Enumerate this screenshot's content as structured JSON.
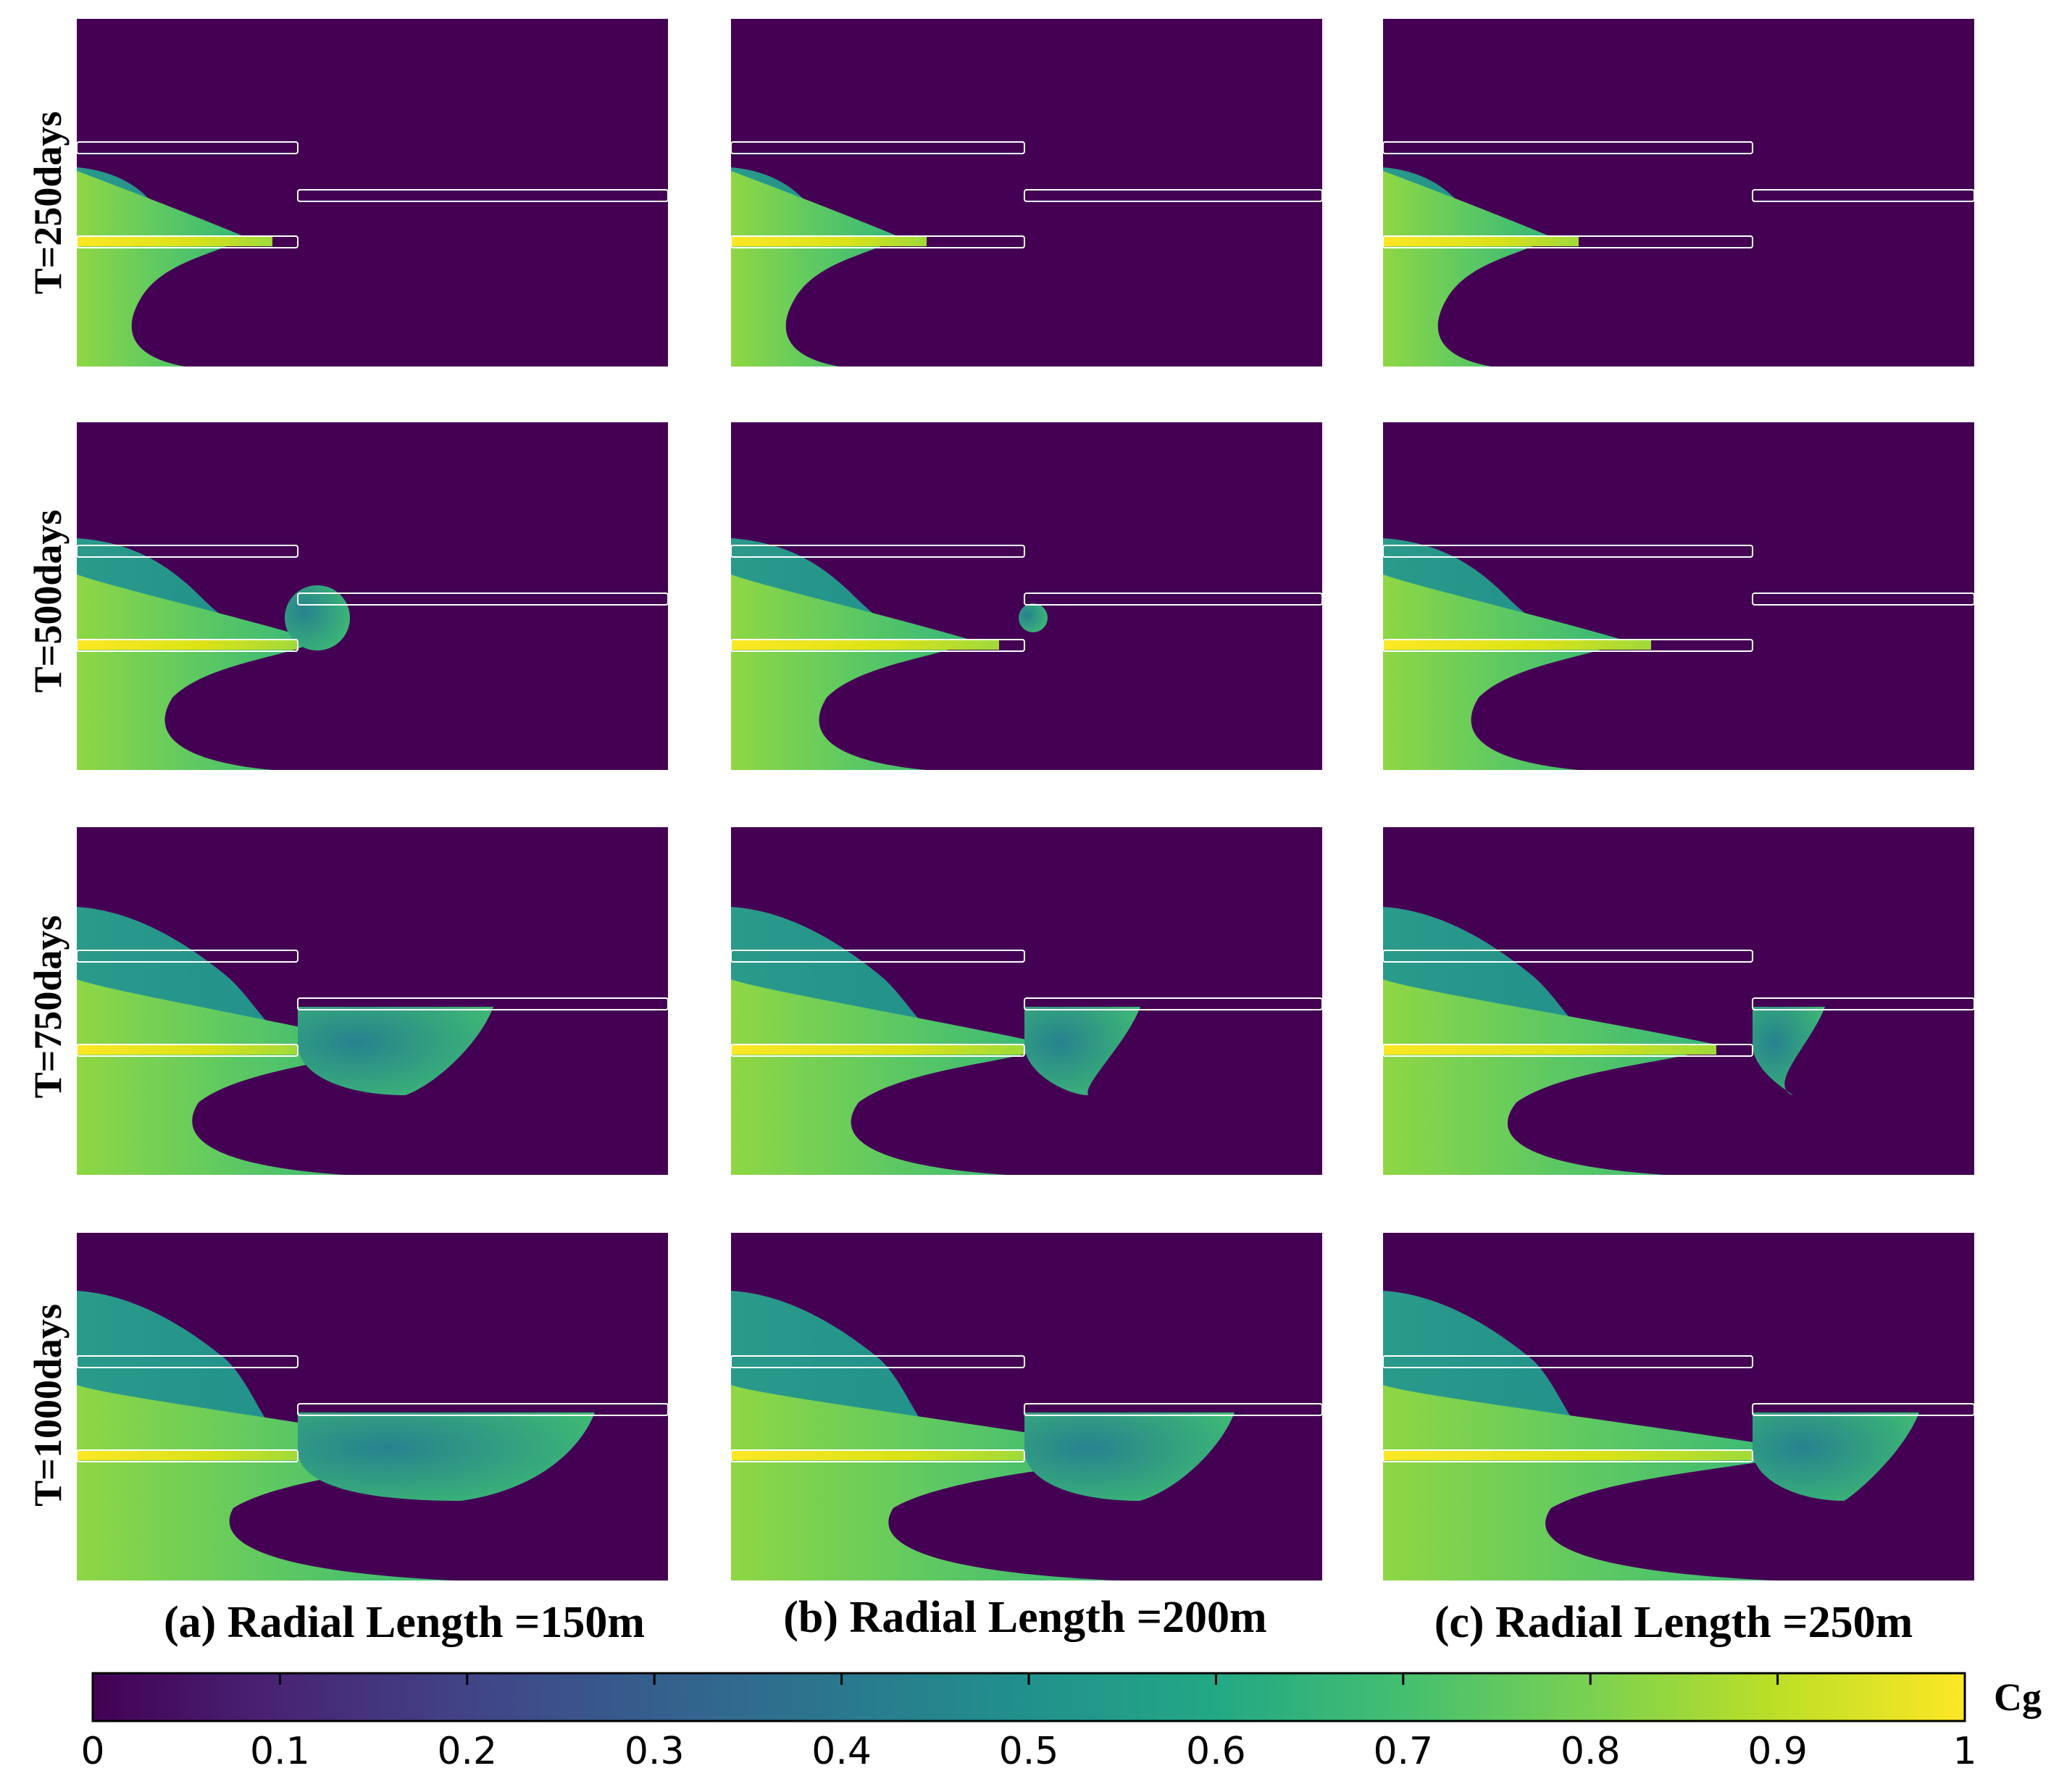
{
  "row_labels": [
    "T=250days",
    "T=500days",
    "T=750days",
    "T=1000days"
  ],
  "column_labels": [
    "(a) Radial Length =150m",
    "(b) Radial Length =200m",
    "(c) Radial Length =250m"
  ],
  "colorbar": {
    "title": "Cg",
    "ticks": [
      "0",
      "0.1",
      "0.2",
      "0.3",
      "0.4",
      "0.5",
      "0.6",
      "0.7",
      "0.8",
      "0.9",
      "1"
    ],
    "range": [
      0,
      1
    ],
    "colormap": "viridis"
  },
  "colors": {
    "background": "#440154",
    "low": "#440154",
    "mid": "#21918c",
    "high": "#fde725"
  }
}
